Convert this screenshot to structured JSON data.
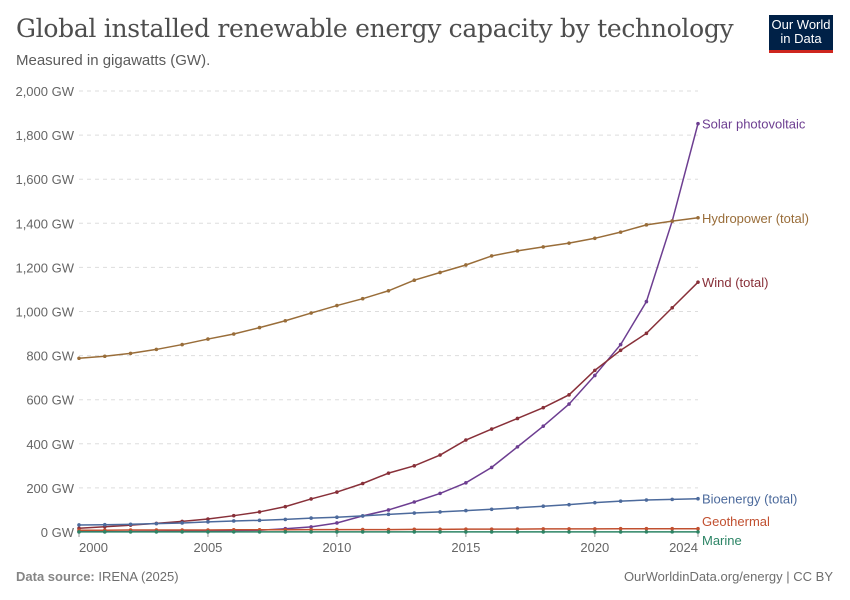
{
  "header": {
    "title": "Global installed renewable energy capacity by technology",
    "subtitle": "Measured in gigawatts (GW).",
    "logo": "Our World in Data"
  },
  "footer": {
    "source_label": "Data source:",
    "source": "IRENA (2025)",
    "credit": "OurWorldinData.org/energy | CC BY"
  },
  "chart_data": {
    "type": "line",
    "title": "Global installed renewable energy capacity by technology",
    "subtitle": "Measured in gigawatts (GW).",
    "xlabel": "",
    "ylabel": "",
    "xlim": [
      2000,
      2024
    ],
    "ylim": [
      0,
      2000
    ],
    "x_ticks": [
      2000,
      2005,
      2010,
      2015,
      2020,
      2024
    ],
    "y_ticks": [
      0,
      200,
      400,
      600,
      800,
      1000,
      1200,
      1400,
      1600,
      1800,
      2000
    ],
    "y_tick_labels": [
      "0 GW",
      "200 GW",
      "400 GW",
      "600 GW",
      "800 GW",
      "1,000 GW",
      "1,200 GW",
      "1,400 GW",
      "1,600 GW",
      "1,800 GW",
      "2,000 GW"
    ],
    "grid": "horizontal dashed",
    "legend": "right, inline labels at line ends",
    "x": [
      2000,
      2001,
      2002,
      2003,
      2004,
      2005,
      2006,
      2007,
      2008,
      2009,
      2010,
      2011,
      2012,
      2013,
      2014,
      2015,
      2016,
      2017,
      2018,
      2019,
      2020,
      2021,
      2022,
      2023,
      2024
    ],
    "series": [
      {
        "name": "Solar photovoltaic",
        "color": "#6d3e91",
        "values": [
          1,
          1,
          2,
          3,
          4,
          5,
          6,
          8,
          15,
          23,
          41,
          73,
          100,
          136,
          175,
          223,
          293,
          386,
          480,
          580,
          710,
          850,
          1045,
          1410,
          1852
        ]
      },
      {
        "name": "Hydropower (total)",
        "color": "#996d39",
        "values": [
          788,
          797,
          810,
          828,
          850,
          875,
          898,
          927,
          958,
          993,
          1027,
          1058,
          1094,
          1142,
          1177,
          1211,
          1252,
          1275,
          1293,
          1310,
          1332,
          1360,
          1393,
          1410,
          1425
        ]
      },
      {
        "name": "Wind (total)",
        "color": "#883039",
        "values": [
          17,
          24,
          31,
          39,
          48,
          59,
          74,
          91,
          115,
          150,
          181,
          220,
          267,
          300,
          349,
          417,
          467,
          515,
          564,
          622,
          733,
          824,
          901,
          1017,
          1133
        ]
      },
      {
        "name": "Bioenergy (total)",
        "color": "#4c6a9c",
        "values": [
          32,
          33,
          35,
          38,
          41,
          46,
          50,
          53,
          57,
          63,
          67,
          73,
          80,
          86,
          91,
          97,
          103,
          110,
          117,
          124,
          133,
          140,
          145,
          148,
          151
        ]
      },
      {
        "name": "Geothermal",
        "color": "#c15030",
        "values": [
          8,
          8,
          9,
          9,
          9,
          9,
          10,
          10,
          10,
          11,
          11,
          11,
          11,
          12,
          12,
          13,
          13,
          13,
          14,
          14,
          14,
          15,
          15,
          15,
          15
        ]
      },
      {
        "name": "Marine",
        "color": "#2c8465",
        "values": [
          0.3,
          0.3,
          0.3,
          0.3,
          0.3,
          0.3,
          0.3,
          0.3,
          0.3,
          0.3,
          0.3,
          0.5,
          0.5,
          0.5,
          0.5,
          0.5,
          0.5,
          0.5,
          0.5,
          0.5,
          0.5,
          0.5,
          0.6,
          0.6,
          0.6
        ]
      }
    ]
  }
}
